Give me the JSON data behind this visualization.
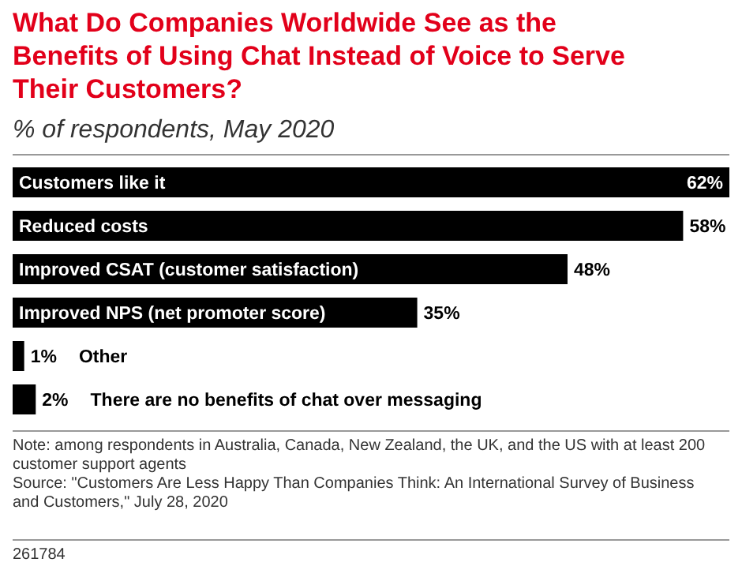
{
  "chart_data": {
    "type": "bar",
    "orientation": "horizontal",
    "title": "What Do Companies Worldwide See as the Benefits of Using Chat Instead of Voice to Serve Their Customers?",
    "subtitle": "% of respondents, May 2020",
    "categories": [
      "Customers like it",
      "Reduced costs",
      "Improved CSAT (customer satisfaction)",
      "Improved NPS (net promoter score)",
      "Other",
      "There are no benefits of chat over messaging"
    ],
    "values": [
      62,
      58,
      48,
      35,
      1,
      2
    ],
    "value_labels": [
      "62%",
      "58%",
      "48%",
      "35%",
      "1%",
      "2%"
    ],
    "color": "#000000",
    "annotations": [
      "Note: among respondents in Australia, Canada, New Zealand, the UK, and the US with at least 200 customer support agents",
      "Source: \"Customers Are Less Happy Than Companies Think: An International Survey of Business and Customers,\" July 28, 2020",
      "261784"
    ]
  }
}
